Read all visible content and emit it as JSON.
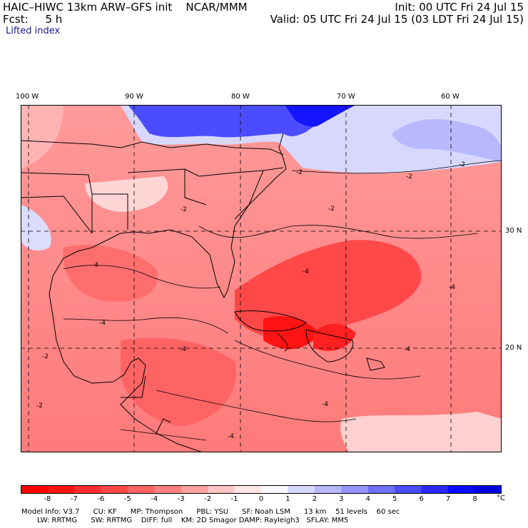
{
  "header": {
    "model_line": "HAIC–HIWC 13km ARW–GFS init    NCAR/MMM",
    "fcst_line": "Fcst:     5 h",
    "init_line": "Init: 00 UTC Fri 24 Jul 15",
    "valid_line": "Valid: 05 UTC Fri 24 Jul 15 (03 LDT Fri 24 Jul 15)",
    "field_name": "Lifted index"
  },
  "map": {
    "lon_labels": [
      "100 W",
      "90 W",
      "80 W",
      "70 W",
      "60 W"
    ],
    "lat_labels": [
      "30 N",
      "20 N"
    ],
    "contour_labels": [
      "-2",
      "-2",
      "-2",
      "-2",
      "-2",
      "-4",
      "-4",
      "-4",
      "-4",
      "-4",
      "-4",
      "-4",
      "-2",
      "-2",
      "-4"
    ],
    "colors": {
      "land_border": "#000000",
      "gridline": "#000000"
    }
  },
  "colorbar": {
    "labels": [
      "-8",
      "-7",
      "-6",
      "-5",
      "-4",
      "-3",
      "-2",
      "-1",
      "0",
      "1",
      "2",
      "3",
      "4",
      "5",
      "6",
      "7",
      "8"
    ],
    "unit": "°C",
    "colors": [
      "#ff0000",
      "#ff1414",
      "#ff2e2e",
      "#ff4848",
      "#ff6464",
      "#ff8080",
      "#ffa0a0",
      "#ffc4c4",
      "#ffe6e6",
      "#f8f8ff",
      "#d8d8ff",
      "#b8b8ff",
      "#9494ff",
      "#7070ff",
      "#4c4cff",
      "#2828ff",
      "#0a0aff",
      "#0000e0"
    ]
  },
  "footer": {
    "line1": "Model Info: V3.7      CU: KF      MP: Thompson      PBL: YSU      SF: Noah LSM      13 km    51 levels    60 sec",
    "line2": "LW: RRTMG      SW: RRTMG    DIFF: full    KM: 2D Smagor DAMP: Rayleigh3   SFLAY: MM5"
  }
}
